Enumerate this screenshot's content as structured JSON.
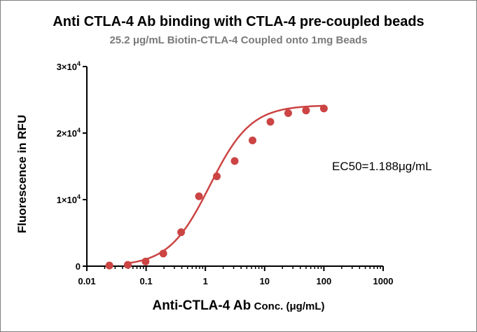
{
  "chart_data": {
    "type": "scatter",
    "title": "Anti CTLA-4 Ab binding with CTLA-4 pre-coupled beads",
    "subtitle": "25.2 μg/mL Biotin-CTLA-4 Coupled onto 1mg Beads",
    "ylabel": "Fluorescence in RFU",
    "xlabel_main": "Anti-CTLA-4 Ab",
    "xlabel_unit": "Conc. (μg/mL)",
    "x_scale": "log",
    "xlim": [
      0.01,
      1000
    ],
    "ylim": [
      0,
      30000
    ],
    "x_ticks": [
      0.01,
      0.1,
      1,
      10,
      100,
      1000
    ],
    "x_tick_labels": [
      "0.01",
      "0.1",
      "1",
      "10",
      "100",
      "1000"
    ],
    "y_ticks": [
      0,
      10000,
      20000,
      30000
    ],
    "y_tick_labels": [
      {
        "mantissa": "0",
        "exp": ""
      },
      {
        "mantissa": "1×10",
        "exp": "4"
      },
      {
        "mantissa": "2×10",
        "exp": "4"
      },
      {
        "mantissa": "3×10",
        "exp": "4"
      }
    ],
    "points": [
      {
        "x": 0.024,
        "y": 100
      },
      {
        "x": 0.049,
        "y": 200
      },
      {
        "x": 0.098,
        "y": 700
      },
      {
        "x": 0.195,
        "y": 1900
      },
      {
        "x": 0.39,
        "y": 5100
      },
      {
        "x": 0.78,
        "y": 10500
      },
      {
        "x": 1.56,
        "y": 13500
      },
      {
        "x": 3.125,
        "y": 15800
      },
      {
        "x": 6.25,
        "y": 18900
      },
      {
        "x": 12.5,
        "y": 21700
      },
      {
        "x": 25,
        "y": 23000
      },
      {
        "x": 50,
        "y": 23400
      },
      {
        "x": 100,
        "y": 23700
      }
    ],
    "fit": {
      "bottom": 0,
      "top": 24200,
      "ec50": 1.188,
      "hill": 1.25,
      "x_range": [
        0.05,
        100
      ]
    },
    "annotation": "EC50=1.188μg/mL",
    "marker_color": "#cc4444",
    "line_color": "#cc4444",
    "grid": false,
    "legend": "none"
  }
}
